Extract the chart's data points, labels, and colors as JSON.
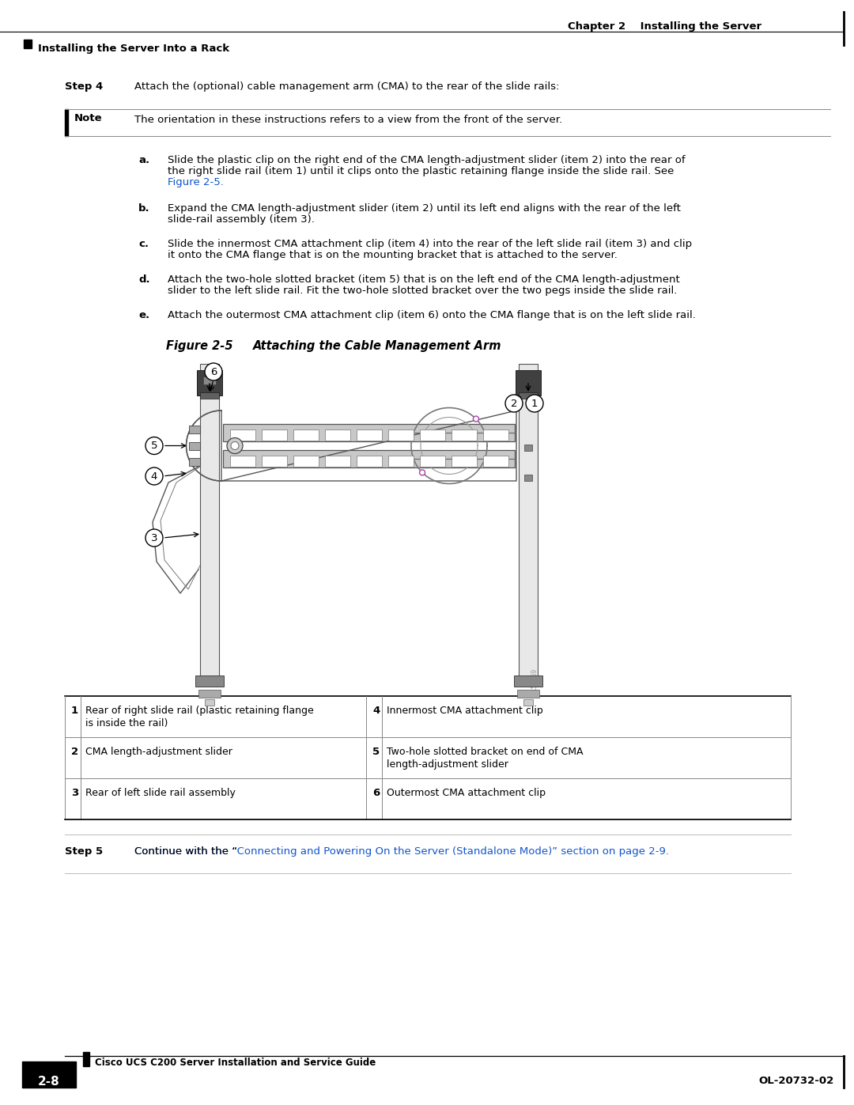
{
  "bg_color": "#ffffff",
  "header_text": "Chapter 2    Installing the Server",
  "subheader_text": "Installing the Server Into a Rack",
  "footer_guide": "Cisco UCS C200 Server Installation and Service Guide",
  "footer_code": "OL-20732-02",
  "footer_page": "2-8",
  "step4_label": "Step 4",
  "step4_text": "Attach the (optional) cable management arm (CMA) to the rear of the slide rails:",
  "note_label": "Note",
  "note_text": "The orientation in these instructions refers to a view from the front of the server.",
  "item_a_1": "Slide the plastic clip on the right end of the CMA length-adjustment slider (item 2) into the rear of",
  "item_a_2": "the right slide rail (item 1) until it clips onto the plastic retaining flange inside the slide rail. See",
  "item_a_3": "Figure 2-5.",
  "item_b_1": "Expand the CMA length-adjustment slider (item 2) until its left end aligns with the rear of the left",
  "item_b_2": "slide-rail assembly (item 3).",
  "item_c_1": "Slide the innermost CMA attachment clip (item 4) into the rear of the left slide rail (item 3) and clip",
  "item_c_2": "it onto the CMA flange that is on the mounting bracket that is attached to the server.",
  "item_d_1": "Attach the two-hole slotted bracket (item 5) that is on the left end of the CMA length-adjustment",
  "item_d_2": "slider to the left slide rail. Fit the two-hole slotted bracket over the two pegs inside the slide rail.",
  "item_e_1": "Attach the outermost CMA attachment clip (item 6) onto the CMA flange that is on the left slide rail.",
  "figure_label": "Figure 2-5",
  "figure_title": "Attaching the Cable Management Arm",
  "table_rows": [
    [
      "1",
      "Rear of right slide rail (plastic retaining flange\nis inside the rail)",
      "4",
      "Innermost CMA attachment clip"
    ],
    [
      "2",
      "CMA length-adjustment slider",
      "5",
      "Two-hole slotted bracket on end of CMA\nlength-adjustment slider"
    ],
    [
      "3",
      "Rear of left slide rail assembly",
      "6",
      "Outermost CMA attachment clip"
    ]
  ],
  "step5_label": "Step 5",
  "step5_pre": "Continue with the “",
  "step5_link": "Connecting and Powering On the Server (Standalone Mode)” section on page 2-9.",
  "link_color": "#1155CC",
  "text_color": "#000000",
  "gray_color": "#aaaaaa",
  "light_gray": "#d0d0d0",
  "rail_color": "#c8c8c8",
  "fs_body": 9.5,
  "fs_small": 9.0,
  "fs_header": 9.5
}
